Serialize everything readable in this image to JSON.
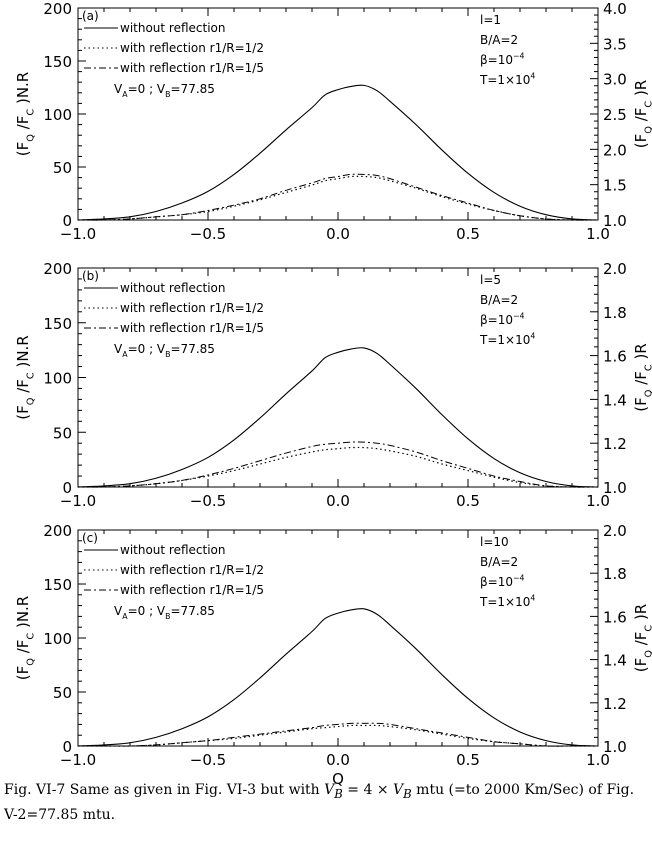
{
  "figure": {
    "caption": "Fig. VI-7 Same as given in Fig. VI-3 but with V_B = 4 × V_B mtu (=to 2000 Km/Sec) of Fig. V-2=77.85 mtu.",
    "caption_segments": [
      "Fig. VI-7 Same as given in Fig. VI-3 but with ",
      "V",
      "B",
      " = 4 × ",
      "V",
      "B",
      " mtu (=to 2000 Km/Sec) of Fig. V-2=77.85 mtu."
    ]
  },
  "chart_data": [
    {
      "type": "line",
      "panel_label": "(a)",
      "ylabel_left": "(F_Q /F_C )N.R",
      "ylabel_right": "(F_Q /F_C )R",
      "xlabel": "",
      "xlim": [
        -1.0,
        1.0
      ],
      "ylim_left": [
        0,
        200
      ],
      "ylim_right": [
        1.0,
        4.0
      ],
      "x_ticks": [
        "−1.0",
        "−0.5",
        "0.0",
        "0.5",
        "1.0"
      ],
      "y_ticks_left": [
        "0",
        "50",
        "100",
        "150",
        "200"
      ],
      "y_ticks_right": [
        "1.0",
        "1.5",
        "2.0",
        "2.5",
        "3.0",
        "3.5",
        "4.0"
      ],
      "legend_position": "top-left",
      "annotations_right": [
        "l=1",
        "B/A=2",
        "β=10^−4",
        "T=1×10^4"
      ],
      "annotation_velocity": "V_A=0 ; V_B=77.85",
      "x": [
        -1.0,
        -0.9,
        -0.8,
        -0.7,
        -0.6,
        -0.5,
        -0.4,
        -0.3,
        -0.2,
        -0.1,
        -0.05,
        0.0,
        0.05,
        0.1,
        0.15,
        0.2,
        0.3,
        0.4,
        0.5,
        0.6,
        0.7,
        0.8,
        0.9,
        1.0
      ],
      "series": [
        {
          "name": "without reflection",
          "style": "solid",
          "values": [
            0,
            1,
            3,
            8,
            16,
            27,
            43,
            63,
            85,
            106,
            118,
            123,
            126,
            127,
            122,
            112,
            90,
            66,
            44,
            26,
            13,
            5,
            1,
            0
          ]
        },
        {
          "name": "with reflection r1/R=1/2",
          "style": "dotted",
          "values": [
            0,
            0,
            1,
            3,
            5,
            8,
            13,
            19,
            26,
            33,
            37,
            39,
            41,
            41,
            40,
            37,
            30,
            22,
            15,
            9,
            4,
            1,
            0,
            0
          ]
        },
        {
          "name": "with reflection r1/R=1/5",
          "style": "dashed",
          "values": [
            0,
            0,
            1,
            3,
            5,
            9,
            14,
            20,
            28,
            35,
            39,
            41,
            43,
            43,
            42,
            39,
            31,
            23,
            16,
            9,
            4,
            1,
            0,
            0
          ]
        }
      ]
    },
    {
      "type": "line",
      "panel_label": "(b)",
      "ylabel_left": "(F_Q /F_C )N.R",
      "ylabel_right": "(F_Q /F_C )R",
      "xlabel": "",
      "xlim": [
        -1.0,
        1.0
      ],
      "ylim_left": [
        0,
        200
      ],
      "ylim_right": [
        1.0,
        2.0
      ],
      "x_ticks": [
        "−1.0",
        "−0.5",
        "0.0",
        "0.5",
        "1.0"
      ],
      "y_ticks_left": [
        "0",
        "50",
        "100",
        "150",
        "200"
      ],
      "y_ticks_right": [
        "1.0",
        "1.2",
        "1.4",
        "1.6",
        "1.8",
        "2.0"
      ],
      "legend_position": "top-left",
      "annotations_right": [
        "l=5",
        "B/A=2",
        "β=10^−4",
        "T=1×10^4"
      ],
      "annotation_velocity": "V_A=0 ; V_B=77.85",
      "x": [
        -1.0,
        -0.9,
        -0.8,
        -0.7,
        -0.6,
        -0.5,
        -0.4,
        -0.3,
        -0.2,
        -0.1,
        -0.05,
        0.0,
        0.05,
        0.1,
        0.15,
        0.2,
        0.3,
        0.4,
        0.5,
        0.6,
        0.7,
        0.8,
        0.9,
        1.0
      ],
      "series": [
        {
          "name": "without reflection",
          "style": "solid",
          "values": [
            0,
            1,
            3,
            8,
            16,
            27,
            43,
            63,
            85,
            106,
            118,
            123,
            126,
            127,
            122,
            112,
            90,
            66,
            44,
            26,
            13,
            5,
            1,
            0
          ]
        },
        {
          "name": "with reflection r1/R=1/2",
          "style": "dotted",
          "values": [
            0,
            0,
            1,
            3,
            6,
            10,
            15,
            21,
            27,
            32,
            34,
            35,
            36,
            36,
            35,
            33,
            28,
            21,
            15,
            9,
            4,
            1,
            0,
            0
          ]
        },
        {
          "name": "with reflection r1/R=1/5",
          "style": "dashed",
          "values": [
            0,
            0,
            1,
            3,
            6,
            11,
            17,
            24,
            31,
            37,
            39,
            40,
            41,
            41,
            40,
            38,
            32,
            24,
            17,
            10,
            5,
            1,
            0,
            0
          ]
        }
      ]
    },
    {
      "type": "line",
      "panel_label": "(c)",
      "ylabel_left": "(F_Q /F_C )N.R",
      "ylabel_right": "(F_Q /F_C )R",
      "xlabel": "Q",
      "xlim": [
        -1.0,
        1.0
      ],
      "ylim_left": [
        0,
        200
      ],
      "ylim_right": [
        1.0,
        2.0
      ],
      "x_ticks": [
        "−1.0",
        "−0.5",
        "0.0",
        "0.5",
        "1.0"
      ],
      "y_ticks_left": [
        "0",
        "50",
        "100",
        "150",
        "200"
      ],
      "y_ticks_right": [
        "1.0",
        "1.2",
        "1.4",
        "1.6",
        "1.8",
        "2.0"
      ],
      "legend_position": "top-left",
      "annotations_right": [
        "l=10",
        "B/A=2",
        "β=10^−4",
        "T=1×10^4"
      ],
      "annotation_velocity": "V_A=0 ; V_B=77.85",
      "x": [
        -1.0,
        -0.9,
        -0.8,
        -0.7,
        -0.6,
        -0.5,
        -0.4,
        -0.3,
        -0.2,
        -0.1,
        -0.05,
        0.0,
        0.05,
        0.1,
        0.15,
        0.2,
        0.3,
        0.4,
        0.5,
        0.6,
        0.7,
        0.8,
        0.9,
        1.0
      ],
      "series": [
        {
          "name": "without reflection",
          "style": "solid",
          "values": [
            0,
            1,
            3,
            8,
            16,
            27,
            43,
            63,
            85,
            106,
            118,
            123,
            126,
            127,
            122,
            112,
            90,
            66,
            44,
            26,
            13,
            5,
            1,
            0
          ]
        },
        {
          "name": "with reflection r1/R=1/2",
          "style": "dotted",
          "values": [
            0,
            0,
            0,
            1,
            3,
            5,
            7,
            10,
            13,
            16,
            17,
            18,
            19,
            19,
            19,
            18,
            15,
            11,
            7,
            4,
            2,
            0,
            0,
            0
          ]
        },
        {
          "name": "with reflection r1/R=1/5",
          "style": "dashed",
          "values": [
            0,
            0,
            0,
            1,
            3,
            5,
            8,
            11,
            14,
            17,
            19,
            20,
            21,
            21,
            21,
            20,
            16,
            12,
            8,
            4,
            2,
            0,
            0,
            0
          ]
        }
      ]
    }
  ]
}
